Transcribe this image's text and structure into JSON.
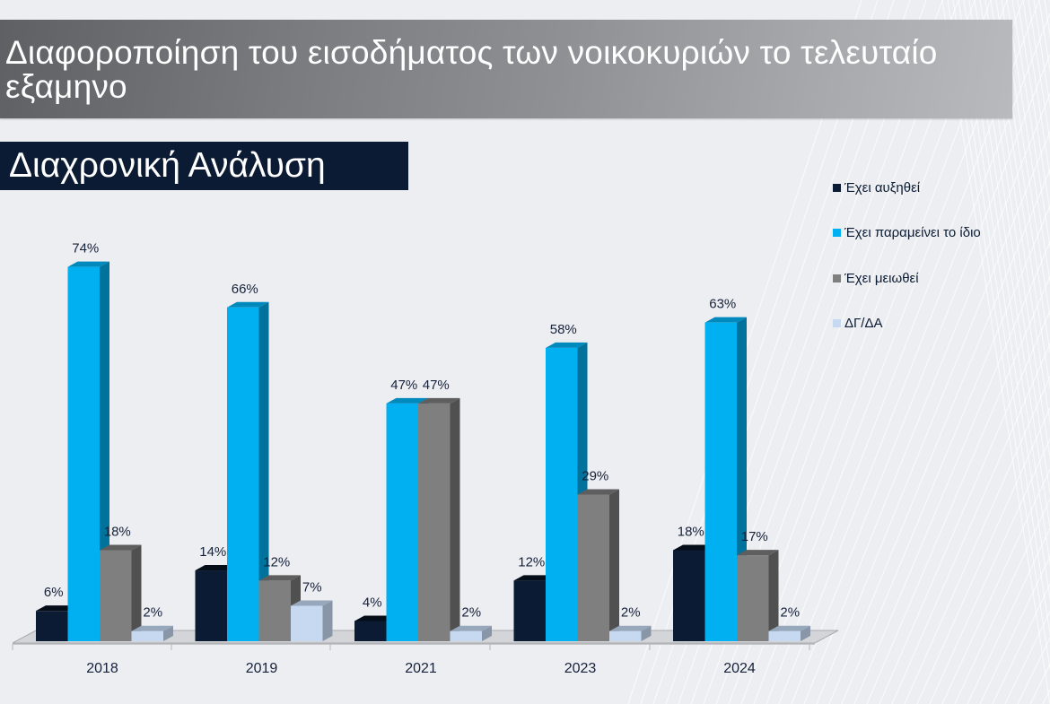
{
  "header": {
    "title": "Διαφοροποίηση του εισοδήματος των νοικοκυριών το τελευταίο εξαμηνο",
    "subtitle": "Διαχρονική Ανάλυση"
  },
  "colors": {
    "increased": "#0b1b33",
    "same": "#00b0f0",
    "decreased": "#7f7f7f",
    "dk_na": "#c6d9f1",
    "header_band": "#8f9094",
    "subtitle_bg": "#0b1b33"
  },
  "chart_data": {
    "type": "bar",
    "style": "3d-clustered-column",
    "title": "Διαχρονική Ανάλυση",
    "xlabel": "",
    "ylabel": "",
    "ylim": [
      0,
      80
    ],
    "grid": false,
    "legend_position": "right",
    "categories": [
      "2018",
      "2019",
      "2021",
      "2023",
      "2024"
    ],
    "series": [
      {
        "name": "Έχει αυξηθεί",
        "color": "#0b1b33",
        "values": [
          6,
          14,
          4,
          12,
          18
        ]
      },
      {
        "name": "Έχει παραμείνει το ίδιο",
        "color": "#00b0f0",
        "values": [
          74,
          66,
          47,
          58,
          63
        ]
      },
      {
        "name": "Έχει μειωθεί",
        "color": "#7f7f7f",
        "values": [
          18,
          12,
          47,
          29,
          17
        ]
      },
      {
        "name": "ΔΓ/ΔΑ",
        "color": "#c6d9f1",
        "values": [
          2,
          7,
          null,
          2,
          2
        ]
      }
    ],
    "data_labels": [
      [
        "6%",
        "14%",
        "4%",
        "12%",
        "18%"
      ],
      [
        "74%",
        "66%",
        "47%",
        "58%",
        "63%"
      ],
      [
        "18%",
        "12%",
        "47%",
        "29%",
        "17%"
      ],
      [
        "2%",
        "7%",
        "2%",
        "2%",
        "2%"
      ]
    ],
    "note": "2021 ΔΓ/ΔΑ shown with label 2%"
  }
}
